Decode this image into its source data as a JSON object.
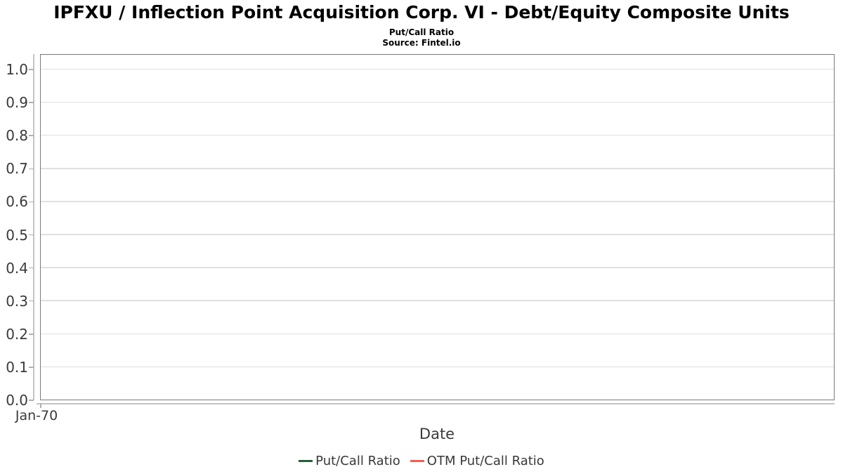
{
  "header": {
    "title": "IPFXU / Inflection Point Acquisition Corp. VI - Debt/Equity Composite Units",
    "subtitle": "Put/Call Ratio",
    "source": "Source: Fintel.io"
  },
  "chart_data": {
    "type": "line",
    "title": "IPFXU / Inflection Point Acquisition Corp. VI - Debt/Equity Composite Units",
    "subtitle": "Put/Call Ratio",
    "source": "Source: Fintel.io",
    "xlabel": "Date",
    "ylabel": "",
    "x_tick_labels": [
      "Jan-70"
    ],
    "y_ticks": [
      0.0,
      0.1,
      0.2,
      0.3,
      0.4,
      0.5,
      0.6,
      0.7,
      0.8,
      0.9,
      1.0
    ],
    "y_tick_labels": [
      "0.0",
      "0.1",
      "0.2",
      "0.3",
      "0.4",
      "0.5",
      "0.6",
      "0.7",
      "0.8",
      "0.9",
      "1.0"
    ],
    "ylim": [
      0.0,
      1.05
    ],
    "grid": true,
    "legend_position": "bottom",
    "series": [
      {
        "name": "Put/Call Ratio",
        "color": "#275d38",
        "x": [],
        "values": []
      },
      {
        "name": "OTM Put/Call Ratio",
        "color": "#f85c52",
        "x": [],
        "values": []
      }
    ]
  },
  "colors": {
    "background": "#ffffff",
    "title_text": "#000000",
    "grid": "#e0e0e0",
    "plot_border": "#7a7a7a",
    "axis_line": "#c4c4c4",
    "tick": "#b0b0b0",
    "tick_label": "#3a3a3a",
    "axis_title": "#3b3b3b",
    "legend_text": "#383838"
  }
}
